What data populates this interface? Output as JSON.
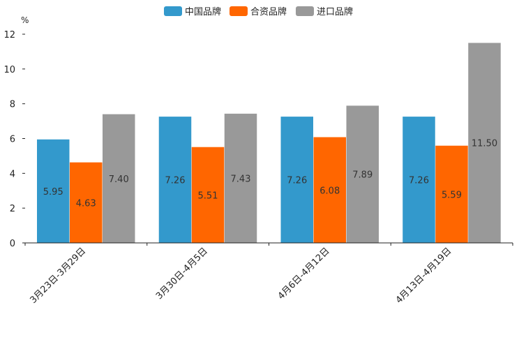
{
  "chart_data": {
    "type": "bar",
    "title": "",
    "xlabel": "",
    "ylabel": "%",
    "ylim": [
      0,
      12
    ],
    "yticks": [
      0,
      2,
      4,
      6,
      8,
      10,
      12
    ],
    "grid": false,
    "legend_position": "top-center",
    "categories": [
      "3月23日-3月29日",
      "3月30日-4月5日",
      "4月6日-4月12日",
      "4月13日-4月19日"
    ],
    "series": [
      {
        "name": "中国品牌",
        "color": "#3399CC",
        "values": [
          5.95,
          7.26,
          7.26,
          7.26
        ]
      },
      {
        "name": "合资品牌",
        "color": "#FF6600",
        "values": [
          4.63,
          5.51,
          6.08,
          5.59
        ]
      },
      {
        "name": "进口品牌",
        "color": "#999999",
        "values": [
          7.4,
          7.43,
          7.89,
          11.5
        ]
      }
    ]
  }
}
